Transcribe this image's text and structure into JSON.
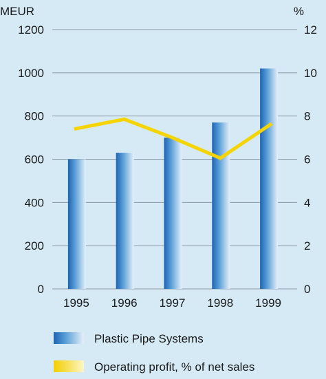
{
  "chart_data": {
    "type": "bar",
    "categories": [
      "1995",
      "1996",
      "1997",
      "1998",
      "1999"
    ],
    "series": [
      {
        "name": "Plastic Pipe Systems",
        "type": "bar",
        "axis": "left",
        "values": [
          600,
          630,
          700,
          770,
          1020
        ],
        "color": "#2f7fc4"
      },
      {
        "name": "Operating profit, % of net sales",
        "type": "line",
        "axis": "right",
        "values": [
          7.4,
          7.85,
          7.0,
          6.05,
          7.65
        ],
        "color": "#f5d400"
      }
    ],
    "left_axis": {
      "label": "MEUR",
      "min": 0,
      "max": 1200,
      "ticks": [
        "0",
        "200",
        "400",
        "600",
        "800",
        "1000",
        "1200"
      ]
    },
    "right_axis": {
      "label": "%",
      "min": 0,
      "max": 12,
      "ticks": [
        "0",
        "2",
        "4",
        "6",
        "8",
        "10",
        "12"
      ]
    },
    "grid": true,
    "legend_position": "bottom"
  },
  "colors": {
    "background": "#d5eaf5",
    "grid": "#8a9aa5",
    "bar": "#2f7fc4",
    "line": "#f5d400"
  }
}
